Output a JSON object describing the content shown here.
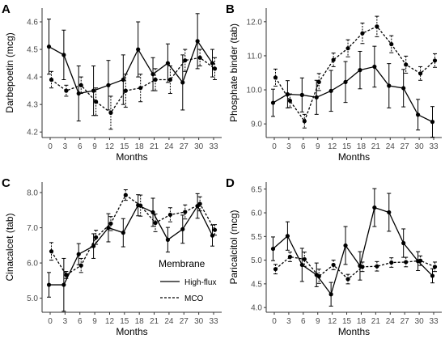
{
  "chart_data": [
    {
      "type": "line",
      "panel_label": "A",
      "xlabel": "Months",
      "ylabel": "Darbepoetin (mcg)",
      "ylim": [
        4.18,
        4.65
      ],
      "yticks": [
        4.2,
        4.3,
        4.4,
        4.5,
        4.6
      ],
      "x": [
        0,
        3,
        6,
        9,
        12,
        15,
        18,
        21,
        24,
        27,
        30,
        33
      ],
      "series": [
        {
          "name": "High-flux",
          "values": [
            4.51,
            4.48,
            4.34,
            4.35,
            4.37,
            4.39,
            4.5,
            4.41,
            4.45,
            4.38,
            4.53,
            4.45
          ],
          "err": [
            0.1,
            0.09,
            0.1,
            0.09,
            0.09,
            0.09,
            0.1,
            0.06,
            0.07,
            0.1,
            0.1,
            0.05
          ]
        },
        {
          "name": "MCO",
          "values": [
            4.39,
            4.35,
            4.37,
            4.31,
            4.27,
            4.35,
            4.36,
            4.39,
            4.39,
            4.46,
            4.47,
            4.43
          ],
          "err": [
            0.03,
            0.02,
            0.03,
            0.05,
            0.06,
            0.06,
            0.05,
            0.04,
            0.05,
            0.04,
            0.03,
            0.04
          ]
        }
      ]
    },
    {
      "type": "line",
      "panel_label": "B",
      "xlabel": "Months",
      "ylabel": "Phosphate binder (tab)",
      "ylim": [
        8.6,
        12.4
      ],
      "yticks": [
        9,
        10,
        11,
        12
      ],
      "x": [
        0,
        3,
        6,
        9,
        12,
        15,
        18,
        21,
        24,
        27,
        30,
        33
      ],
      "series": [
        {
          "name": "High-flux",
          "values": [
            9.62,
            9.87,
            9.85,
            9.78,
            9.97,
            10.23,
            10.58,
            10.68,
            10.12,
            10.05,
            9.27,
            9.06
          ],
          "err": [
            0.4,
            0.4,
            0.5,
            0.5,
            0.6,
            0.6,
            0.55,
            0.6,
            0.65,
            0.55,
            0.45,
            0.45
          ]
        },
        {
          "name": "MCO",
          "values": [
            10.36,
            9.68,
            9.08,
            10.23,
            10.88,
            11.22,
            11.66,
            11.86,
            11.34,
            10.74,
            10.48,
            10.86
          ],
          "err": [
            0.25,
            0.2,
            0.2,
            0.25,
            0.2,
            0.25,
            0.3,
            0.3,
            0.25,
            0.25,
            0.2,
            0.2
          ]
        }
      ]
    },
    {
      "type": "line",
      "panel_label": "C",
      "xlabel": "Months",
      "ylabel": "Cinacalcet (tab)",
      "ylim": [
        4.6,
        8.3
      ],
      "yticks": [
        5,
        6,
        7,
        8
      ],
      "x": [
        0,
        3,
        6,
        9,
        12,
        15,
        18,
        21,
        24,
        27,
        30,
        33
      ],
      "series": [
        {
          "name": "High-flux",
          "values": [
            5.38,
            5.38,
            6.25,
            6.48,
            7.0,
            6.86,
            7.64,
            7.44,
            6.66,
            6.96,
            7.62,
            6.78
          ],
          "err": [
            0.35,
            0.75,
            0.3,
            0.35,
            0.4,
            0.4,
            0.3,
            0.4,
            0.35,
            0.4,
            0.35,
            0.3
          ]
        },
        {
          "name": "MCO",
          "values": [
            6.33,
            5.66,
            5.93,
            6.73,
            7.12,
            7.93,
            7.63,
            7.14,
            7.37,
            7.45,
            7.68,
            6.94
          ],
          "err": [
            0.25,
            0.1,
            0.2,
            0.2,
            0.2,
            0.15,
            0.3,
            0.25,
            0.2,
            0.2,
            0.2,
            0.15
          ]
        }
      ]
    },
    {
      "type": "line",
      "panel_label": "D",
      "xlabel": "Months",
      "ylabel": "Paricalcitol (mcg)",
      "ylim": [
        3.9,
        6.65
      ],
      "yticks": [
        4.0,
        4.5,
        5.0,
        5.5,
        6.0,
        6.5
      ],
      "x": [
        0,
        3,
        6,
        9,
        12,
        15,
        18,
        21,
        24,
        27,
        30,
        33
      ],
      "series": [
        {
          "name": "High-flux",
          "values": [
            5.24,
            5.51,
            4.9,
            4.69,
            4.28,
            5.31,
            4.88,
            6.11,
            6.01,
            5.36,
            4.98,
            4.67
          ],
          "err": [
            0.25,
            0.3,
            0.35,
            0.25,
            0.25,
            0.4,
            0.3,
            0.4,
            0.4,
            0.3,
            0.2,
            0.15
          ]
        },
        {
          "name": "MCO",
          "values": [
            4.81,
            5.07,
            5.02,
            4.66,
            4.9,
            4.6,
            4.86,
            4.87,
            4.95,
            4.96,
            4.99,
            4.86
          ],
          "err": [
            0.1,
            0.1,
            0.15,
            0.15,
            0.1,
            0.1,
            0.1,
            0.1,
            0.1,
            0.1,
            0.1,
            0.1
          ]
        }
      ]
    }
  ],
  "legend": {
    "title": "Membrane",
    "entries": [
      {
        "name": "High-flux",
        "dash": "solid"
      },
      {
        "name": "MCO",
        "dash": "dashed"
      }
    ]
  },
  "colors": {
    "ink": "#000000",
    "tick": "#4d4d4d",
    "axis": "#333333",
    "background": "#ffffff"
  }
}
